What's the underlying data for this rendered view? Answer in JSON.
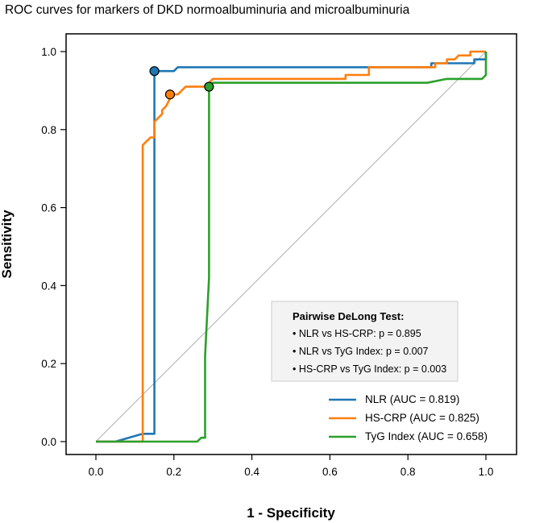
{
  "chart_data": {
    "type": "line",
    "title": "ROC curves for markers of DKD normoalbuminuria and microalbuminuria",
    "xlabel": "1 - Specificity",
    "ylabel": "Sensitivity",
    "xlim": [
      0,
      1
    ],
    "ylim": [
      0,
      1
    ],
    "x_ticks": [
      "0.0",
      "0.2",
      "0.4",
      "0.6",
      "0.8",
      "1.0"
    ],
    "y_ticks": [
      "0.0",
      "0.2",
      "0.4",
      "0.6",
      "0.8",
      "1.0"
    ],
    "grid": false,
    "diagonal_reference": true,
    "legend_position": "bottom-right",
    "series": [
      {
        "name": "NLR (AUC = 0.819)",
        "color": "#1f77b4",
        "points": [
          [
            0,
            0
          ],
          [
            0.05,
            0
          ],
          [
            0.12,
            0.02
          ],
          [
            0.15,
            0.02
          ],
          [
            0.15,
            0.95
          ],
          [
            0.2,
            0.95
          ],
          [
            0.21,
            0.96
          ],
          [
            0.7,
            0.96
          ],
          [
            0.86,
            0.96
          ],
          [
            0.86,
            0.97
          ],
          [
            0.97,
            0.97
          ],
          [
            0.97,
            0.98
          ],
          [
            1.0,
            0.98
          ],
          [
            1.0,
            1.0
          ]
        ],
        "optimal_point": [
          0.15,
          0.95
        ]
      },
      {
        "name": "HS-CRP (AUC = 0.825)",
        "color": "#ff7f0e",
        "points": [
          [
            0,
            0
          ],
          [
            0.12,
            0
          ],
          [
            0.12,
            0.76
          ],
          [
            0.13,
            0.77
          ],
          [
            0.14,
            0.78
          ],
          [
            0.15,
            0.78
          ],
          [
            0.15,
            0.82
          ],
          [
            0.16,
            0.83
          ],
          [
            0.17,
            0.84
          ],
          [
            0.17,
            0.85
          ],
          [
            0.18,
            0.86
          ],
          [
            0.19,
            0.88
          ],
          [
            0.19,
            0.89
          ],
          [
            0.2,
            0.89
          ],
          [
            0.21,
            0.89
          ],
          [
            0.22,
            0.9
          ],
          [
            0.23,
            0.91
          ],
          [
            0.29,
            0.91
          ],
          [
            0.29,
            0.92
          ],
          [
            0.3,
            0.93
          ],
          [
            0.64,
            0.93
          ],
          [
            0.64,
            0.94
          ],
          [
            0.7,
            0.94
          ],
          [
            0.7,
            0.96
          ],
          [
            0.87,
            0.96
          ],
          [
            0.87,
            0.97
          ],
          [
            0.9,
            0.97
          ],
          [
            0.9,
            0.98
          ],
          [
            0.92,
            0.98
          ],
          [
            0.93,
            0.99
          ],
          [
            0.96,
            0.99
          ],
          [
            0.96,
            1.0
          ],
          [
            1.0,
            1.0
          ]
        ],
        "optimal_point": [
          0.19,
          0.89
        ]
      },
      {
        "name": "TyG Index (AUC = 0.658)",
        "color": "#2ca02c",
        "points": [
          [
            0,
            0
          ],
          [
            0.26,
            0
          ],
          [
            0.27,
            0.01
          ],
          [
            0.28,
            0.01
          ],
          [
            0.28,
            0.22
          ],
          [
            0.29,
            0.42
          ],
          [
            0.29,
            0.91
          ],
          [
            0.3,
            0.92
          ],
          [
            0.85,
            0.92
          ],
          [
            0.9,
            0.93
          ],
          [
            0.99,
            0.93
          ],
          [
            1.0,
            0.94
          ],
          [
            1.0,
            1.0
          ]
        ],
        "optimal_point": [
          0.29,
          0.91
        ]
      }
    ],
    "annotation": {
      "title": "Pairwise DeLong Test:",
      "lines": [
        "• NLR vs HS-CRP: p = 0.895",
        "• NLR vs TyG Index: p = 0.007",
        "• HS-CRP vs TyG Index: p = 0.003"
      ]
    }
  }
}
